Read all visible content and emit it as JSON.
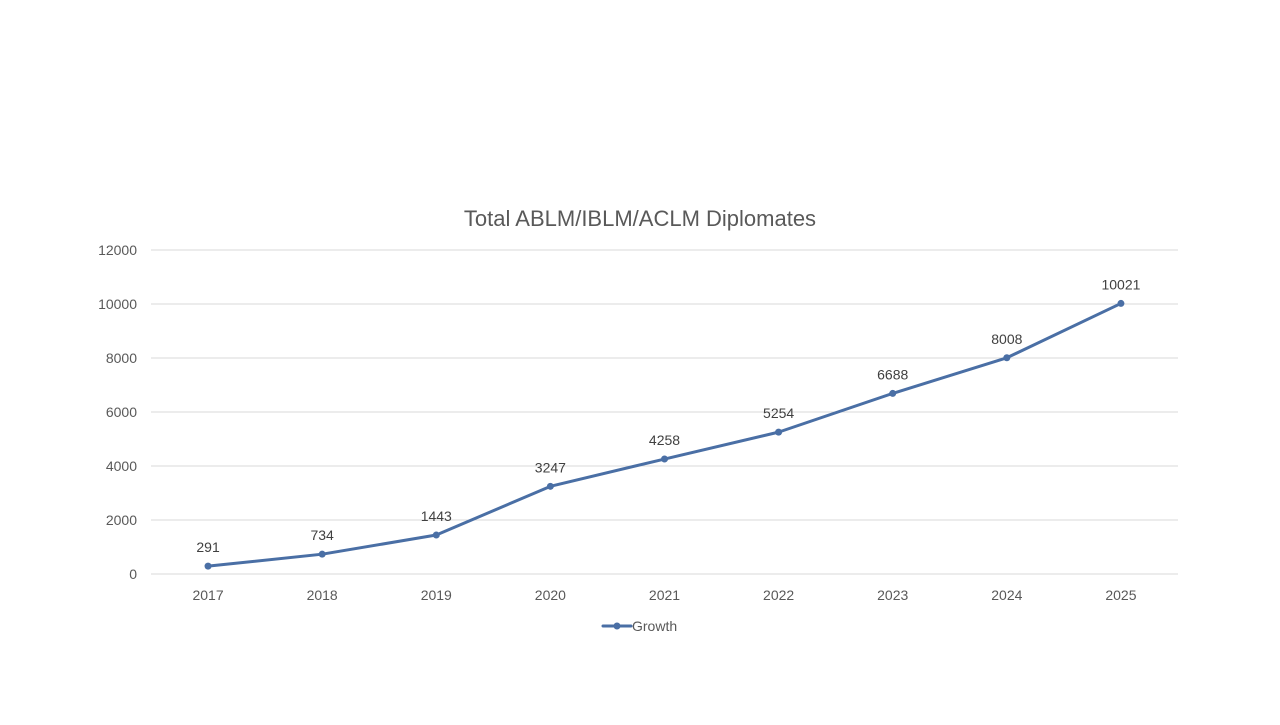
{
  "chart_data": {
    "type": "line",
    "title": "Total ABLM/IBLM/ACLM Diplomates",
    "xlabel": "",
    "ylabel": "",
    "categories": [
      "2017",
      "2018",
      "2019",
      "2020",
      "2021",
      "2022",
      "2023",
      "2024",
      "2025"
    ],
    "series": [
      {
        "name": "Growth",
        "values": [
          291,
          734,
          1443,
          3247,
          4258,
          5254,
          6688,
          8008,
          10021
        ],
        "color": "#4a6fa5"
      }
    ],
    "ylim": [
      0,
      12000
    ],
    "yticks": [
      0,
      2000,
      4000,
      6000,
      8000,
      10000,
      12000
    ],
    "grid": true,
    "legend_position": "bottom"
  }
}
